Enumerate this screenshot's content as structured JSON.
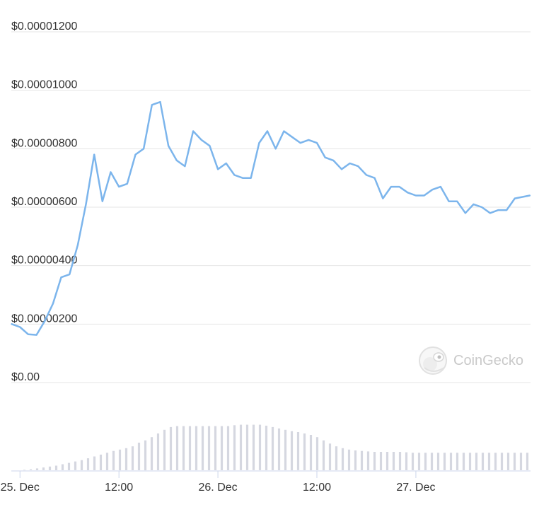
{
  "chart_data": {
    "type": "line",
    "y_tick_labels": [
      "$0.00",
      "$0.00000200",
      "$0.00000400",
      "$0.00000600",
      "$0.00000800",
      "$0.00001000",
      "$0.00001200"
    ],
    "y_ticks": [
      0,
      2e-06,
      4e-06,
      6e-06,
      8e-06,
      1e-05,
      1.2e-05
    ],
    "ylim": [
      0,
      1.2e-05
    ],
    "x_tick_labels": [
      "25. Dec",
      "12:00",
      "26. Dec",
      "12:00",
      "27. Dec"
    ],
    "x_ticks": [
      0,
      12,
      24,
      36,
      48
    ],
    "xlim": [
      -1.05,
      61.9
    ],
    "grid": true,
    "series": [
      {
        "color": "#7cb5ec",
        "x": [
          -1.0,
          0,
          1,
          2,
          3,
          4,
          5,
          6,
          7,
          8,
          9,
          10,
          11,
          12,
          13,
          14,
          15,
          16,
          17,
          18,
          19,
          20,
          21,
          22,
          23,
          24,
          25,
          26,
          27,
          28,
          29,
          30,
          31,
          32,
          33,
          34,
          35,
          36,
          37,
          38,
          39,
          40,
          41,
          42,
          43,
          44,
          45,
          46,
          47,
          48,
          49,
          50,
          51,
          52,
          53,
          54,
          55,
          56,
          57,
          58,
          59,
          60,
          61.8
        ],
        "y": [
          2e-06,
          1.9e-06,
          1.65e-06,
          1.63e-06,
          2.1e-06,
          2.7e-06,
          3.6e-06,
          3.7e-06,
          4.7e-06,
          6.1e-06,
          7.8e-06,
          6.2e-06,
          7.2e-06,
          6.7e-06,
          6.8e-06,
          7.8e-06,
          8e-06,
          9.5e-06,
          9.6e-06,
          8.1e-06,
          7.6e-06,
          7.4e-06,
          8.6e-06,
          8.3e-06,
          8.1e-06,
          7.3e-06,
          7.5e-06,
          7.1e-06,
          7e-06,
          7e-06,
          8.2e-06,
          8.6e-06,
          8e-06,
          8.6e-06,
          8.4e-06,
          8.2e-06,
          8.3e-06,
          8.2e-06,
          7.7e-06,
          7.6e-06,
          7.3e-06,
          7.5e-06,
          7.4e-06,
          7.1e-06,
          7e-06,
          6.3e-06,
          6.7e-06,
          6.7e-06,
          6.5e-06,
          6.4e-06,
          6.4e-06,
          6.6e-06,
          6.7e-06,
          6.2e-06,
          6.2e-06,
          5.8e-06,
          6.1e-06,
          6e-06,
          5.8e-06,
          5.9e-06,
          5.9e-06,
          6.3e-06,
          6.4e-06
        ]
      }
    ],
    "volume": {
      "color": "#d5d7e0",
      "values": [
        0.01,
        0.02,
        0.04,
        0.06,
        0.08,
        0.1,
        0.13,
        0.16,
        0.19,
        0.22,
        0.26,
        0.3,
        0.34,
        0.38,
        0.42,
        0.45,
        0.48,
        0.52,
        0.6,
        0.65,
        0.72,
        0.8,
        0.88,
        0.94,
        0.96,
        0.96,
        0.96,
        0.96,
        0.96,
        0.96,
        0.96,
        0.96,
        0.96,
        0.98,
        0.99,
        0.99,
        0.99,
        0.99,
        0.97,
        0.94,
        0.91,
        0.88,
        0.85,
        0.83,
        0.8,
        0.77,
        0.72,
        0.65,
        0.58,
        0.52,
        0.48,
        0.45,
        0.43,
        0.42,
        0.41,
        0.4,
        0.4,
        0.4,
        0.4,
        0.4,
        0.39,
        0.38,
        0.38,
        0.38,
        0.38,
        0.38,
        0.38,
        0.38,
        0.38,
        0.38,
        0.38,
        0.38,
        0.38,
        0.38,
        0.38,
        0.38,
        0.38,
        0.38,
        0.38,
        0.38
      ]
    }
  },
  "watermark": {
    "text": "CoinGecko",
    "icon": "coingecko-logo-icon"
  }
}
